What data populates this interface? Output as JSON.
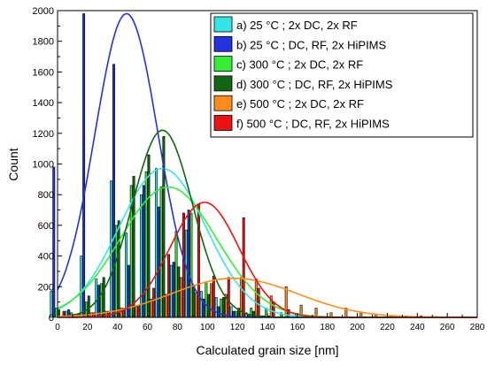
{
  "chart_data": {
    "type": "bar",
    "xlabel": "Calculated grain size [nm]",
    "ylabel": "Count",
    "xlim": [
      0,
      280
    ],
    "ylim": [
      0,
      2000
    ],
    "x_ticks": [
      0,
      20,
      40,
      60,
      80,
      100,
      120,
      140,
      160,
      180,
      200,
      220,
      240,
      260,
      280
    ],
    "y_ticks": [
      0,
      200,
      400,
      600,
      800,
      1000,
      1200,
      1400,
      1600,
      1800,
      2000
    ],
    "grid": false,
    "legend_position": "top-right",
    "bin_width": 10,
    "series": [
      {
        "name": "a) 25 °C ; 2x DC, 2x RF",
        "color": "#33e6e6",
        "x": [
          0,
          10,
          20,
          30,
          40,
          50,
          60,
          70,
          80,
          90,
          100,
          110,
          120,
          130,
          140
        ],
        "values": [
          170,
          40,
          400,
          250,
          890,
          550,
          800,
          970,
          340,
          570,
          170,
          130,
          70,
          30,
          10
        ],
        "fit": {
          "peak": 970,
          "mean": 70,
          "sigma": 29
        }
      },
      {
        "name": "b) 25 °C ; DC, RF, 2x HiPIMS",
        "color": "#2233dd",
        "x": [
          0,
          10,
          20,
          30,
          40,
          50,
          60,
          70,
          80,
          90,
          100,
          110,
          120,
          130,
          140
        ],
        "values": [
          980,
          50,
          1980,
          210,
          1650,
          340,
          860,
          720,
          360,
          700,
          120,
          70,
          40,
          20,
          10
        ],
        "fit": {
          "peak": 1980,
          "mean": 46,
          "sigma": 21
        }
      },
      {
        "name": "c) 300 °C ; 2x DC, 2x RF",
        "color": "#33ee33",
        "x": [
          0,
          10,
          20,
          30,
          40,
          50,
          60,
          70,
          80,
          90,
          100,
          110,
          120,
          130,
          140,
          150,
          160
        ],
        "values": [
          60,
          30,
          100,
          220,
          600,
          860,
          950,
          850,
          560,
          680,
          230,
          120,
          40,
          60,
          60,
          30,
          20
        ],
        "fit": {
          "peak": 850,
          "mean": 74,
          "sigma": 32
        }
      },
      {
        "name": "d) 300 °C ; DC, RF, 2x HiPIMS",
        "color": "#116611",
        "x": [
          0,
          10,
          20,
          30,
          40,
          50,
          60,
          70,
          80,
          90,
          100,
          110,
          120,
          130,
          140
        ],
        "values": [
          50,
          20,
          140,
          260,
          630,
          920,
          1060,
          1180,
          330,
          210,
          150,
          130,
          60,
          40,
          10
        ],
        "fit": {
          "peak": 1220,
          "mean": 70,
          "sigma": 20
        }
      },
      {
        "name": "e) 500 °C ; 2x DC, 2x RF",
        "color": "#ff8c1a",
        "x": [
          10,
          20,
          30,
          40,
          50,
          60,
          70,
          80,
          90,
          100,
          110,
          120,
          130,
          140,
          150,
          160,
          170,
          180,
          190,
          200,
          210,
          220,
          230,
          240,
          250
        ],
        "values": [
          20,
          30,
          40,
          60,
          70,
          120,
          150,
          260,
          160,
          220,
          150,
          260,
          250,
          140,
          200,
          80,
          60,
          30,
          60,
          30,
          20,
          10,
          10,
          10,
          5
        ],
        "fit": {
          "peak": 255,
          "mean": 118,
          "sigma": 42
        }
      },
      {
        "name": "f) 500 °C ; DC, RF, 2x HiPIMS",
        "color": "#ee1111",
        "x": [
          0,
          10,
          20,
          30,
          40,
          50,
          60,
          70,
          80,
          90,
          100,
          110,
          120,
          130,
          140,
          150
        ],
        "values": [
          40,
          20,
          30,
          40,
          60,
          80,
          190,
          410,
          680,
          740,
          270,
          260,
          650,
          190,
          100,
          50
        ],
        "fit": {
          "peak": 750,
          "mean": 98,
          "sigma": 23
        }
      }
    ]
  }
}
